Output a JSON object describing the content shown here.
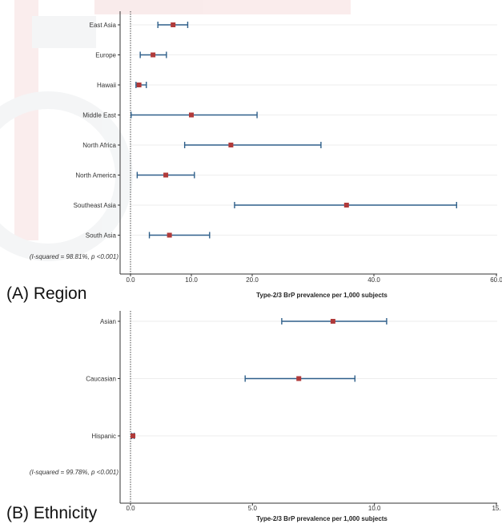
{
  "chart_data": [
    {
      "type": "forest",
      "panel_label": "(A) Region",
      "xlabel": "Type-2/3 BrP prevalence per 1,000 subjects",
      "xlim": [
        0,
        60
      ],
      "xticks": [
        "0.0",
        "10.0",
        "20.0",
        "40.0",
        "60.0"
      ],
      "xtick_values": [
        0,
        10,
        20,
        40,
        60
      ],
      "heterogeneity_note": "(I-squared = 98.81%, p <0.001)",
      "categories": [
        "East Asia",
        "Europe",
        "Hawaii",
        "Middle East",
        "North Africa",
        "North America",
        "Southeast Asia",
        "South Asia"
      ],
      "estimates": [
        7.0,
        3.7,
        1.4,
        10.0,
        16.5,
        5.8,
        35.5,
        6.4
      ],
      "ci_low": [
        4.5,
        1.6,
        0.9,
        0.1,
        8.9,
        1.1,
        17.1,
        3.1
      ],
      "ci_high": [
        9.4,
        5.9,
        2.6,
        20.8,
        31.3,
        10.5,
        53.5,
        13.0
      ],
      "marker_color": "#b03a3a",
      "line_color": "#2e5f8a"
    },
    {
      "type": "forest",
      "panel_label": "(B) Ethnicity",
      "xlabel": "Type-2/3 BrP prevalence per 1,000 subjects",
      "xlim": [
        0,
        15
      ],
      "xticks": [
        "0.0",
        "5.0",
        "10.0",
        "15."
      ],
      "xtick_values": [
        0,
        5,
        10,
        15
      ],
      "heterogeneity_note": "(I-squared = 99.78%, p <0.001)",
      "categories": [
        "Asian",
        "Caucasian",
        "Hispanic"
      ],
      "estimates": [
        8.3,
        6.9,
        0.1
      ],
      "ci_low": [
        6.2,
        4.7,
        0.05
      ],
      "ci_high": [
        10.5,
        9.2,
        0.15
      ],
      "marker_color": "#b03a3a",
      "line_color": "#2e5f8a"
    }
  ]
}
